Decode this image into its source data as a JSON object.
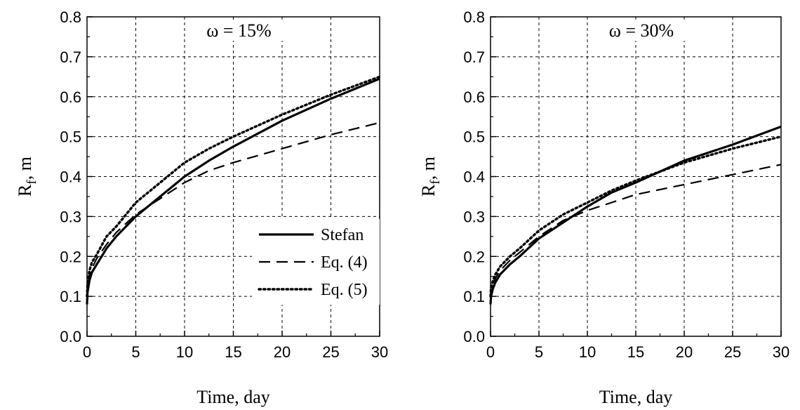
{
  "chart_data": [
    {
      "type": "line",
      "title": "ω = 15%",
      "xlabel": "Time, day",
      "ylabel_main": "R",
      "ylabel_sub": "f",
      "ylabel_tail": ", m",
      "xlim": [
        0,
        30
      ],
      "ylim": [
        0.0,
        0.8
      ],
      "xticks": [
        0,
        5,
        10,
        15,
        20,
        25,
        30
      ],
      "yticks": [
        "0.0",
        "0.1",
        "0.2",
        "0.3",
        "0.4",
        "0.5",
        "0.6",
        "0.7",
        "0.8"
      ],
      "grid": true,
      "legend_position": "center-right",
      "series": [
        {
          "name": "Stefan",
          "style": "solid",
          "x": [
            0,
            0.05,
            0.25,
            0.5,
            1,
            2,
            3,
            5,
            7.5,
            10,
            12.5,
            15,
            20,
            25,
            30
          ],
          "y": [
            0.08,
            0.11,
            0.14,
            0.16,
            0.18,
            0.22,
            0.25,
            0.3,
            0.35,
            0.4,
            0.44,
            0.475,
            0.54,
            0.595,
            0.645
          ]
        },
        {
          "name": "Eq. (4)",
          "style": "dashed",
          "x": [
            0,
            0.05,
            0.25,
            0.5,
            1,
            2,
            3,
            5,
            7.5,
            10,
            12.5,
            15,
            20,
            25,
            30
          ],
          "y": [
            0.09,
            0.12,
            0.15,
            0.17,
            0.195,
            0.23,
            0.26,
            0.305,
            0.345,
            0.385,
            0.415,
            0.435,
            0.47,
            0.505,
            0.535
          ]
        },
        {
          "name": "Eq. (5)",
          "style": "dotted",
          "x": [
            0,
            0.05,
            0.25,
            0.5,
            1,
            2,
            3,
            5,
            7.5,
            10,
            12.5,
            15,
            20,
            25,
            30
          ],
          "y": [
            0.1,
            0.13,
            0.165,
            0.185,
            0.205,
            0.25,
            0.275,
            0.335,
            0.385,
            0.435,
            0.47,
            0.5,
            0.555,
            0.605,
            0.65
          ]
        }
      ]
    },
    {
      "type": "line",
      "title": "ω = 30%",
      "xlabel": "Time, day",
      "ylabel_main": "R",
      "ylabel_sub": "f",
      "ylabel_tail": ", m",
      "xlim": [
        0,
        30
      ],
      "ylim": [
        0.0,
        0.8
      ],
      "xticks": [
        0,
        5,
        10,
        15,
        20,
        25,
        30
      ],
      "yticks": [
        "0.0",
        "0.1",
        "0.2",
        "0.3",
        "0.4",
        "0.5",
        "0.6",
        "0.7",
        "0.8"
      ],
      "grid": true,
      "legend_position": "none",
      "series": [
        {
          "name": "Stefan",
          "style": "solid",
          "x": [
            0,
            0.05,
            0.25,
            0.5,
            1,
            2,
            3,
            5,
            7.5,
            10,
            12.5,
            15,
            20,
            25,
            30
          ],
          "y": [
            0.08,
            0.1,
            0.12,
            0.135,
            0.155,
            0.18,
            0.2,
            0.245,
            0.285,
            0.325,
            0.36,
            0.385,
            0.44,
            0.48,
            0.525
          ]
        },
        {
          "name": "Eq. (4)",
          "style": "dashed",
          "x": [
            0,
            0.05,
            0.25,
            0.5,
            1,
            2,
            3,
            5,
            7.5,
            10,
            12.5,
            15,
            20,
            25,
            30
          ],
          "y": [
            0.09,
            0.11,
            0.13,
            0.145,
            0.165,
            0.19,
            0.21,
            0.25,
            0.29,
            0.315,
            0.335,
            0.355,
            0.38,
            0.405,
            0.43
          ]
        },
        {
          "name": "Eq. (5)",
          "style": "dotted",
          "x": [
            0,
            0.05,
            0.25,
            0.5,
            1,
            2,
            3,
            5,
            7.5,
            10,
            12.5,
            15,
            20,
            25,
            30
          ],
          "y": [
            0.1,
            0.12,
            0.14,
            0.155,
            0.175,
            0.2,
            0.22,
            0.265,
            0.305,
            0.335,
            0.365,
            0.39,
            0.435,
            0.47,
            0.5
          ]
        }
      ]
    }
  ]
}
